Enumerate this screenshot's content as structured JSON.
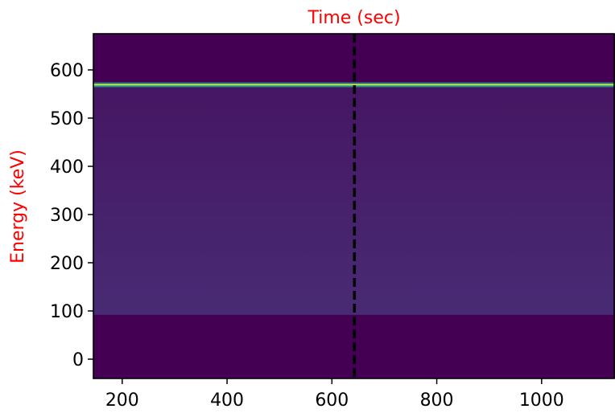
{
  "chart_data": {
    "type": "heatmap",
    "title": "",
    "xlabel": "Time (sec)",
    "ylabel": "Energy (keV)",
    "label_color": "#ff0000",
    "xlim": [
      145,
      1140
    ],
    "ylim": [
      -40,
      675
    ],
    "xticks": [
      200,
      400,
      600,
      800,
      1000
    ],
    "yticks": [
      0,
      100,
      200,
      300,
      400,
      500,
      600
    ],
    "xtick_labels": [
      "200",
      "400",
      "600",
      "800",
      "1000"
    ],
    "ytick_labels": [
      "0",
      "100",
      "200",
      "300",
      "400",
      "500",
      "600"
    ],
    "colormap": "viridis",
    "background_color": "#440154",
    "continuum": {
      "energy_min": 92,
      "energy_max": 563,
      "intensity_low_energy": 0.12,
      "intensity_high_energy": 0.05,
      "color_low": "#482b74",
      "color_high": "#461663"
    },
    "lines": [
      {
        "energy": 570,
        "intensity": 1.0,
        "colors": [
          "#31688e",
          "#35b779",
          "#fde725",
          "#35b779",
          "#2a788e"
        ]
      }
    ],
    "vertical_marker": {
      "x": 643,
      "style": "dashed",
      "color": "#000000"
    },
    "grid": false
  }
}
